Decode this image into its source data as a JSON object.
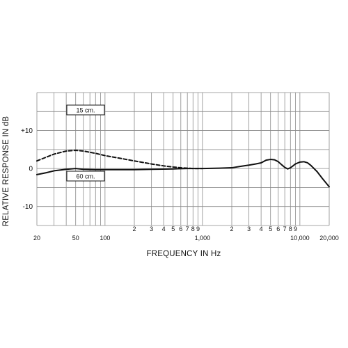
{
  "chart_data": {
    "type": "line",
    "xscale": "log",
    "xlim": [
      20,
      20000
    ],
    "ylim": [
      -15,
      20
    ],
    "grid": true,
    "xlabel": "FREQUENCY IN Hz",
    "ylabel": "RELATIVE RESPONSE IN dB",
    "xticks": [
      {
        "value": 20,
        "label": "20"
      },
      {
        "value": 50,
        "label": "50"
      },
      {
        "value": 100,
        "label": "100"
      },
      {
        "value": 200,
        "label": "2"
      },
      {
        "value": 300,
        "label": "3"
      },
      {
        "value": 400,
        "label": "4"
      },
      {
        "value": 500,
        "label": "5"
      },
      {
        "value": 600,
        "label": "6"
      },
      {
        "value": 700,
        "label": "7"
      },
      {
        "value": 800,
        "label": "8"
      },
      {
        "value": 900,
        "label": "9"
      },
      {
        "value": 1000,
        "label": "1,000"
      },
      {
        "value": 2000,
        "label": "2"
      },
      {
        "value": 3000,
        "label": "3"
      },
      {
        "value": 4000,
        "label": "4"
      },
      {
        "value": 5000,
        "label": "5"
      },
      {
        "value": 6000,
        "label": "6"
      },
      {
        "value": 7000,
        "label": "7"
      },
      {
        "value": 8000,
        "label": "8"
      },
      {
        "value": 9000,
        "label": "9"
      },
      {
        "value": 10000,
        "label": "10,000"
      },
      {
        "value": 20000,
        "label": "20,000"
      }
    ],
    "yticks": [
      {
        "value": 10,
        "label": "+10"
      },
      {
        "value": 0,
        "label": "0"
      },
      {
        "value": -10,
        "label": "-10"
      }
    ],
    "series": [
      {
        "name": "15 cm.",
        "style": "dashed",
        "x": [
          20,
          25,
          30,
          40,
          50,
          60,
          80,
          100,
          150,
          200,
          300,
          400,
          500,
          600,
          700,
          800,
          1000
        ],
        "y": [
          2.0,
          3.0,
          3.8,
          4.6,
          4.8,
          4.6,
          4.0,
          3.4,
          2.6,
          2.0,
          1.2,
          0.7,
          0.4,
          0.2,
          0.1,
          0.0,
          0.0
        ]
      },
      {
        "name": "60 cm.",
        "style": "solid",
        "x": [
          20,
          25,
          30,
          40,
          50,
          60,
          80,
          100,
          150,
          200,
          300,
          500,
          700,
          1000,
          1500,
          2000,
          2500,
          3000,
          3500,
          4000,
          4500,
          5000,
          5500,
          6000,
          6500,
          7000,
          7500,
          8000,
          8500,
          9000,
          10000,
          11000,
          12000,
          13000,
          15000,
          17000,
          20000
        ],
        "y": [
          -1.6,
          -1.1,
          -0.6,
          -0.2,
          0.0,
          -0.2,
          -0.3,
          -0.3,
          -0.3,
          -0.3,
          -0.2,
          -0.1,
          0.0,
          0.0,
          0.1,
          0.2,
          0.6,
          0.9,
          1.2,
          1.5,
          2.2,
          2.4,
          2.3,
          1.8,
          1.0,
          0.3,
          -0.1,
          0.2,
          0.7,
          1.2,
          1.7,
          1.8,
          1.5,
          0.8,
          -0.8,
          -2.6,
          -4.8
        ]
      }
    ]
  }
}
